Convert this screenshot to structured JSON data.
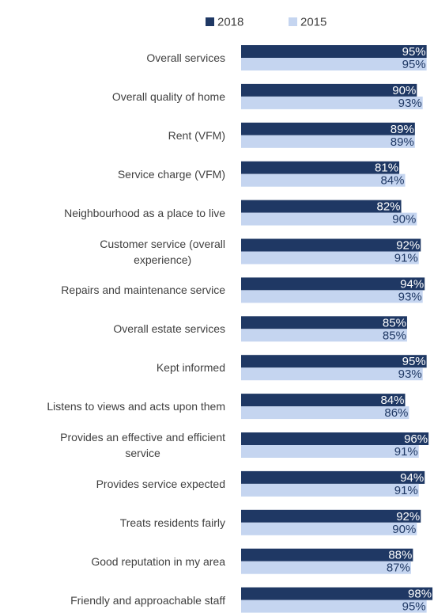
{
  "chart_data": {
    "type": "bar",
    "orientation": "horizontal",
    "categories": [
      "Overall services",
      "Overall quality of home",
      "Rent (VFM)",
      "Service charge (VFM)",
      "Neighbourhood as a place to live",
      "Customer service (overall\nexperience)",
      "Repairs and maintenance service",
      "Overall estate services",
      "Kept informed",
      "Listens to views and acts upon them",
      "Provides an effective and efficient\nservice",
      "Provides service expected",
      "Treats residents fairly",
      "Good reputation in my area",
      "Friendly and approachable staff"
    ],
    "series": [
      {
        "name": "2018",
        "color": "#1f3864",
        "values": [
          95,
          90,
          89,
          81,
          82,
          92,
          94,
          85,
          95,
          84,
          96,
          94,
          92,
          88,
          98
        ],
        "value_labels": [
          "95%",
          "90%",
          "89%",
          "81%",
          "82%",
          "92%",
          "94%",
          "85%",
          "95%",
          "84%",
          "96%",
          "94%",
          "92%",
          "88%",
          "98%"
        ]
      },
      {
        "name": "2015",
        "color": "#c5d5f0",
        "values": [
          95,
          93,
          89,
          84,
          90,
          91,
          93,
          85,
          93,
          86,
          91,
          91,
          90,
          87,
          95
        ],
        "value_labels": [
          "95%",
          "93%",
          "89%",
          "84%",
          "90%",
          "91%",
          "93%",
          "85%",
          "93%",
          "86%",
          "91%",
          "91%",
          "90%",
          "87%",
          "95%"
        ]
      }
    ],
    "xlim": [
      0,
      100
    ],
    "legend": "top"
  }
}
